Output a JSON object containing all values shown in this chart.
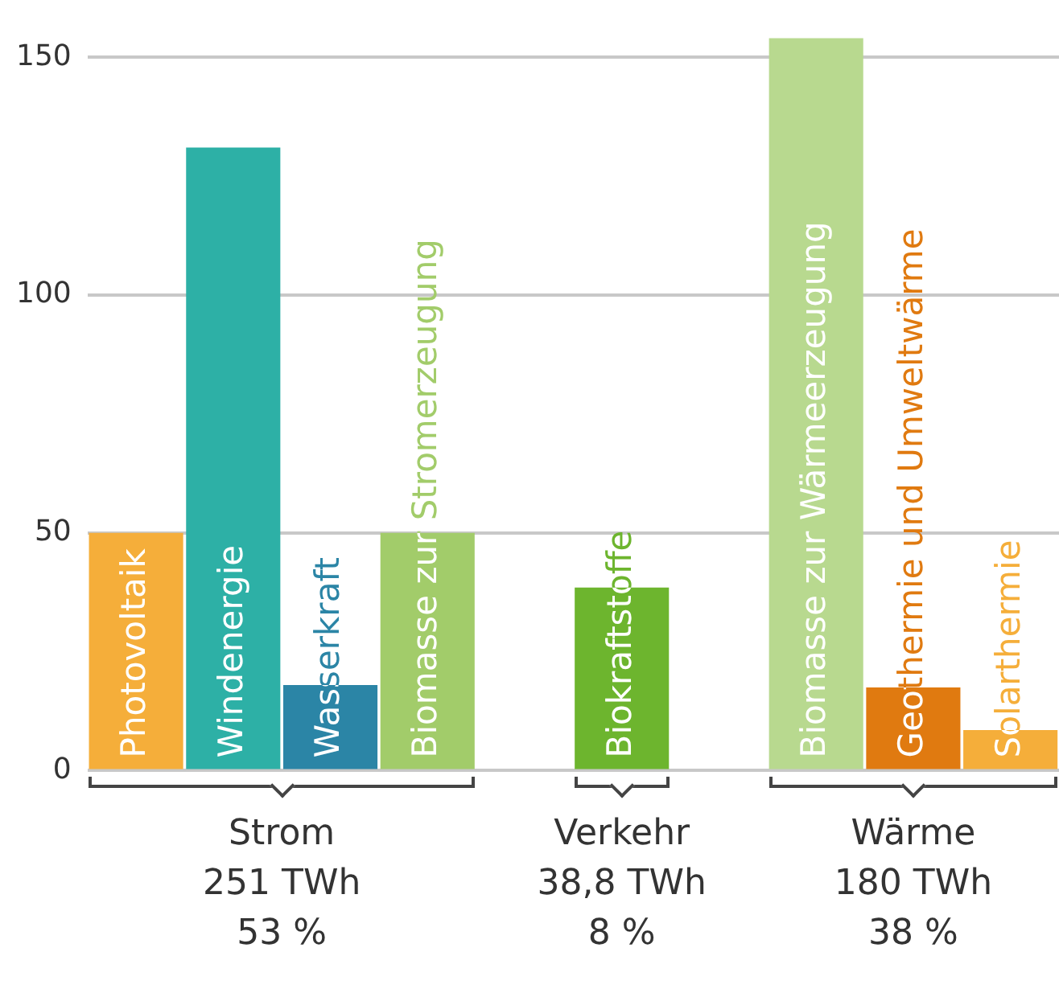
{
  "chart_data": {
    "type": "bar",
    "categories": [
      "Photovoltaik",
      "Windenergie",
      "Wasserkraft",
      "Biomasse zur Stromerzeugung",
      null,
      "Biokraftstoffe",
      null,
      "Biomasse zur Wärmeerzeugung",
      "Geothermie und Umweltwärme",
      "Solarthermie"
    ],
    "values": [
      50,
      131,
      18,
      50,
      null,
      38.5,
      null,
      154,
      17.5,
      8.5
    ],
    "colors": [
      "#f5ae3a",
      "#2db0a6",
      "#2b85a6",
      "#a2cc6a",
      "#ffffff",
      "#6db52e",
      "#ffffff",
      "#b8d98f",
      "#e07a10",
      "#f5ae3a"
    ],
    "ylim": [
      0,
      155
    ],
    "yticks": [
      0,
      50,
      100,
      150
    ],
    "grid": "y",
    "legend": false,
    "tick_labels": "y",
    "annotations": [
      "Strom\n251 TWh\n53 %",
      "Verkehr\n38,8 TWh\n8 %",
      "Wärme\n180 TWh\n38 %"
    ]
  }
}
